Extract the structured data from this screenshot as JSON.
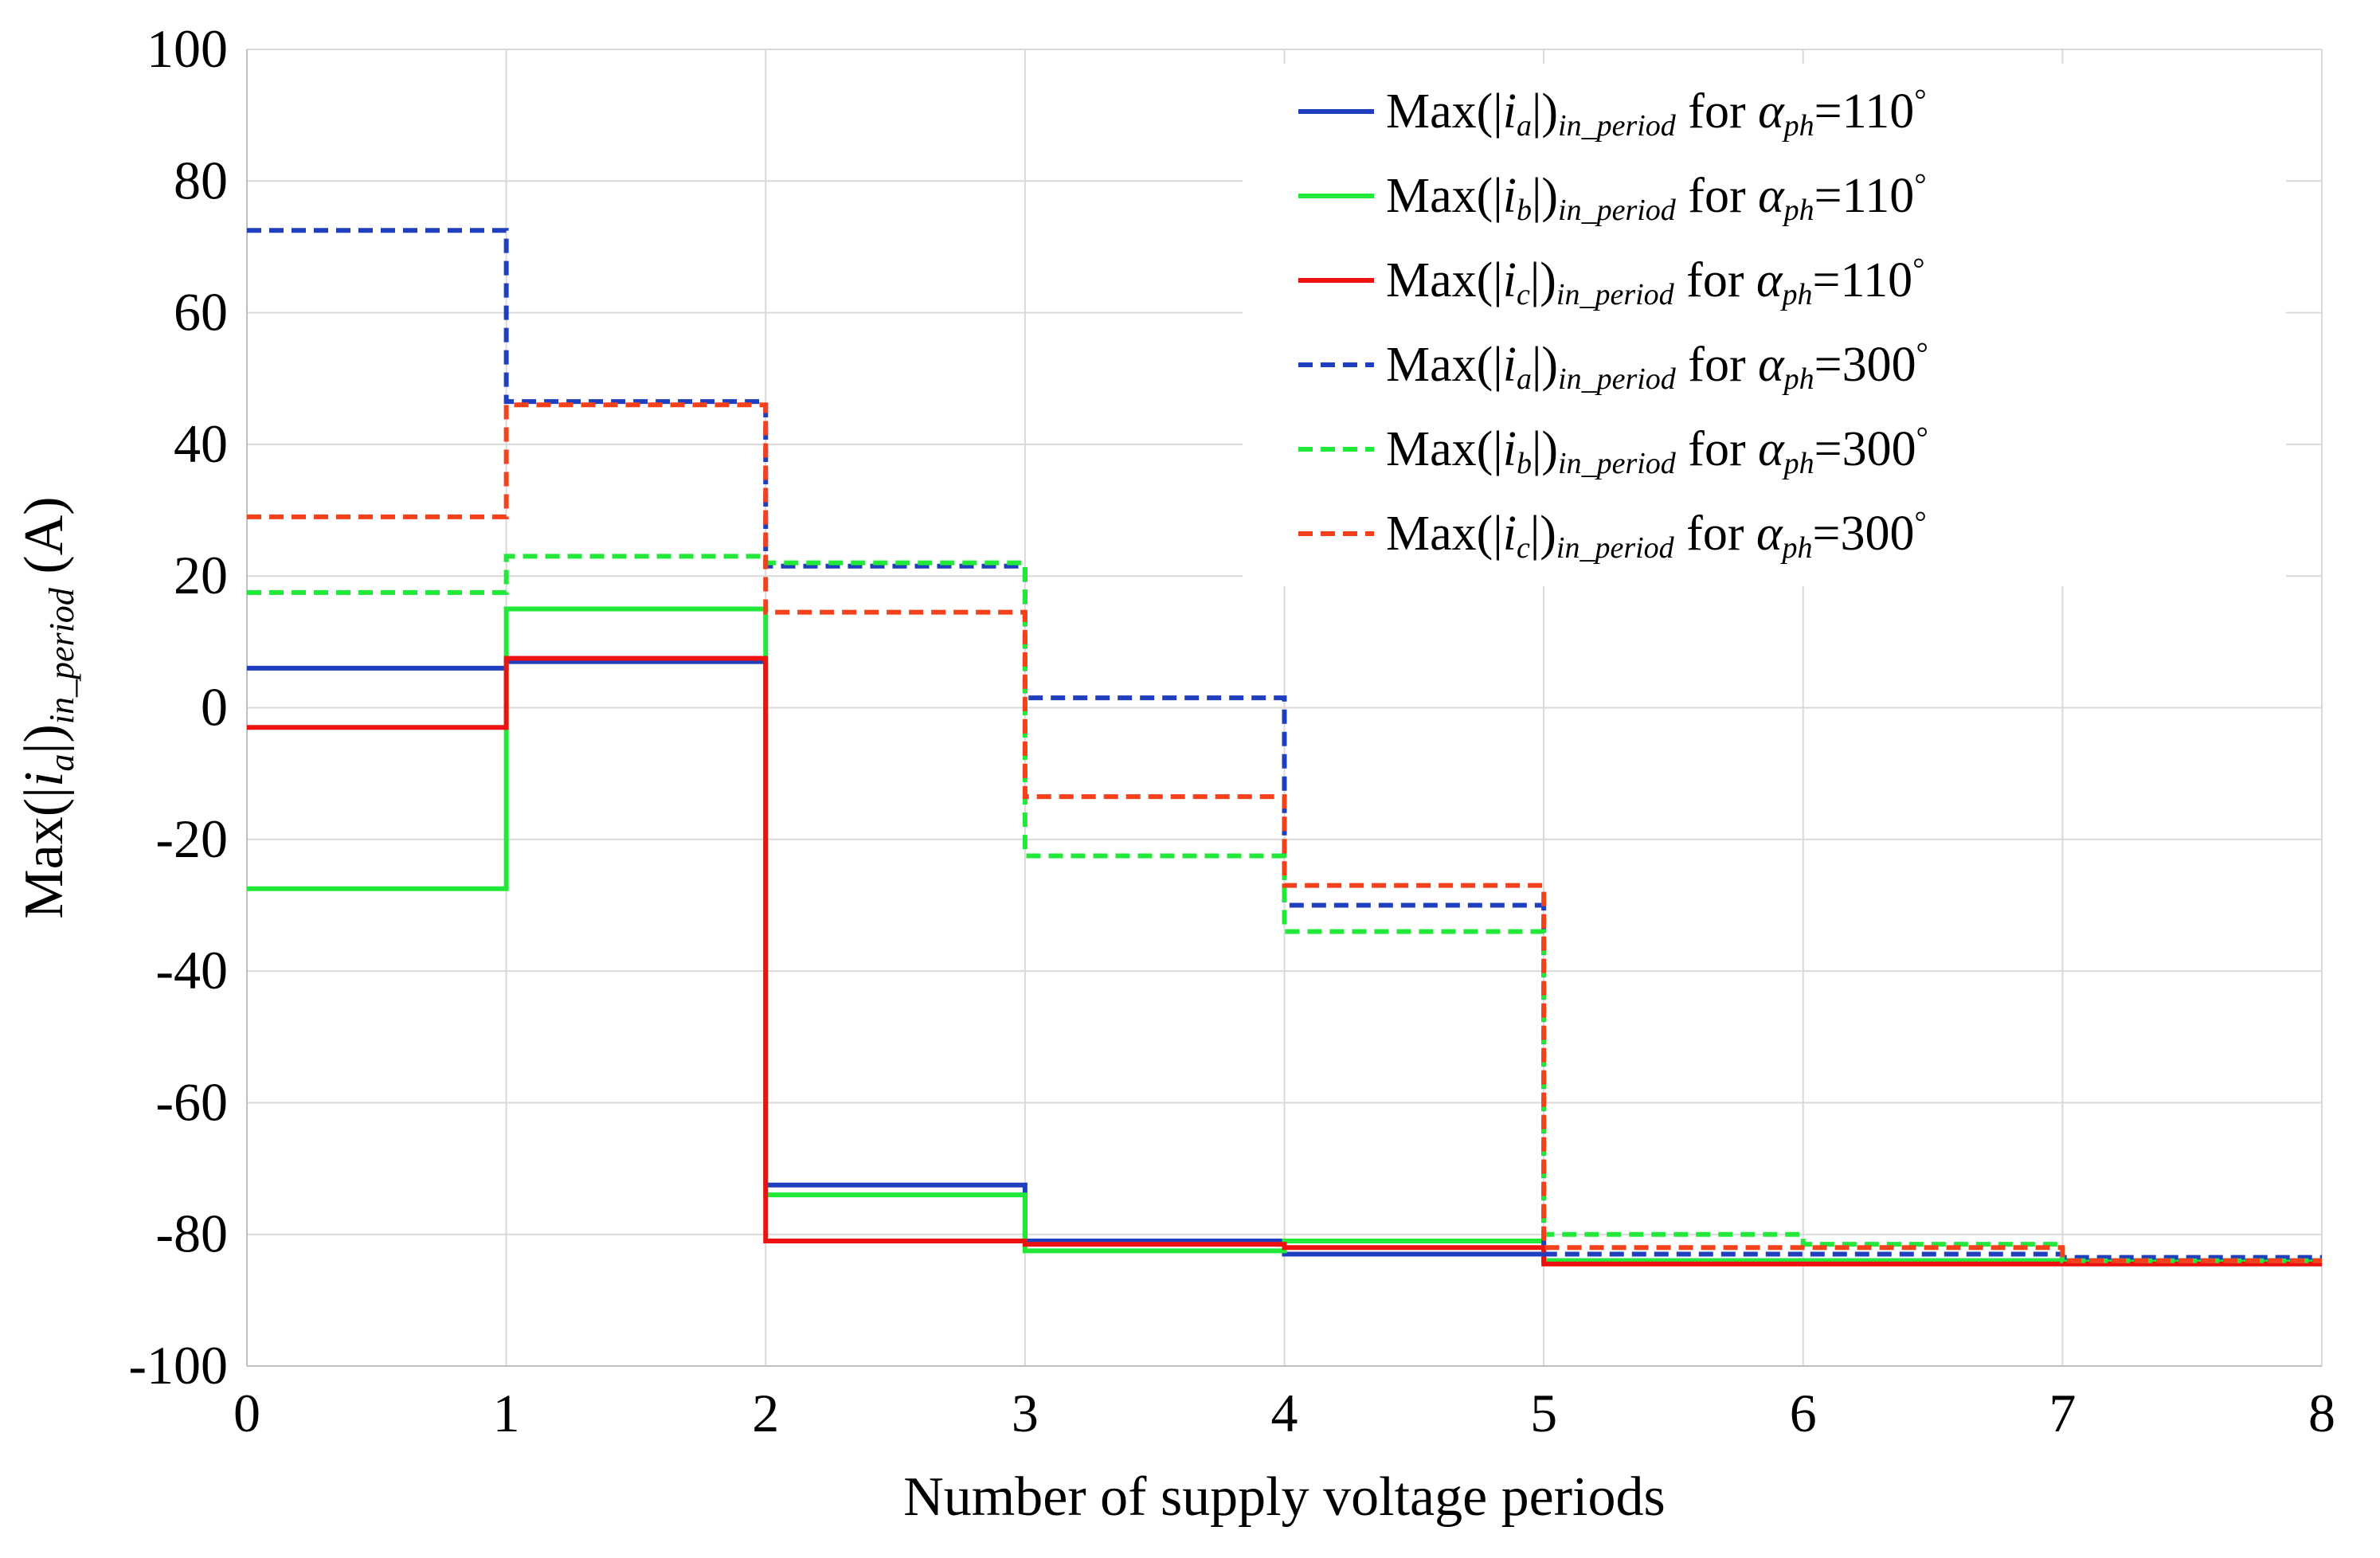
{
  "chart_data": {
    "type": "line",
    "title": "",
    "xlabel": "Number of supply voltage periods",
    "ylabel": {
      "base": "Max(|",
      "var": "i",
      "sub": "a",
      "close": "|)",
      "sub2": "in_period",
      "unit": " (A)"
    },
    "xlim": [
      0,
      8
    ],
    "ylim": [
      -100,
      100
    ],
    "x_ticks": [
      "0",
      "1",
      "2",
      "3",
      "4",
      "5",
      "6",
      "7",
      "8"
    ],
    "y_ticks": [
      "100",
      "80",
      "60",
      "40",
      "20",
      "0",
      "-20",
      "-40",
      "-60",
      "-80",
      "-100"
    ],
    "y_tick_values": [
      100,
      80,
      60,
      40,
      20,
      0,
      -20,
      -40,
      -60,
      -80,
      -100
    ],
    "grid": true,
    "legend_position": "top-right",
    "series": [
      {
        "name": "Max(|ia|)in_period for αph=110°",
        "phase": "a",
        "angle": "110",
        "color": "#1f3fbf",
        "dash": "solid",
        "steps": [
          6,
          7,
          -72.5,
          -81,
          -83,
          -84,
          -84,
          -84
        ]
      },
      {
        "name": "Max(|ib|)in_period for αph=110°",
        "phase": "b",
        "angle": "110",
        "color": "#22e83a",
        "dash": "solid",
        "steps": [
          -27.5,
          15,
          -74,
          -82.5,
          -81,
          -84,
          -84,
          -84
        ]
      },
      {
        "name": "Max(|ic|)in_period for αph=110°",
        "phase": "c",
        "angle": "110",
        "color": "#ee1111",
        "dash": "solid",
        "steps": [
          -3,
          7.5,
          -81,
          -81.5,
          -82,
          -84.5,
          -84.5,
          -84.5
        ]
      },
      {
        "name": "Max(|ia|)in_period for αph=300°",
        "phase": "a",
        "angle": "300",
        "color": "#1f3fbf",
        "dash": "dashed",
        "steps": [
          72.5,
          46.5,
          21.5,
          1.5,
          -30,
          -83,
          -83,
          -83.5
        ]
      },
      {
        "name": "Max(|ib|)in_period for αph=300°",
        "phase": "b",
        "angle": "300",
        "color": "#22e83a",
        "dash": "dashed",
        "steps": [
          17.5,
          23,
          22,
          -22.5,
          -34,
          -80,
          -81.5,
          -84
        ]
      },
      {
        "name": "Max(|ic|)in_period for αph=300°",
        "phase": "c",
        "angle": "300",
        "color": "#f5401c",
        "dash": "dashed",
        "steps": [
          29,
          46,
          14.5,
          -13.5,
          -27,
          -82,
          -82,
          -84
        ]
      }
    ],
    "legend": {
      "prefix": "Max(|",
      "middle": "|)",
      "subscript": "in_period",
      "for_text": " for ",
      "alpha": "α",
      "alpha_sub": "ph",
      "equals": "=",
      "degree": "°"
    }
  }
}
